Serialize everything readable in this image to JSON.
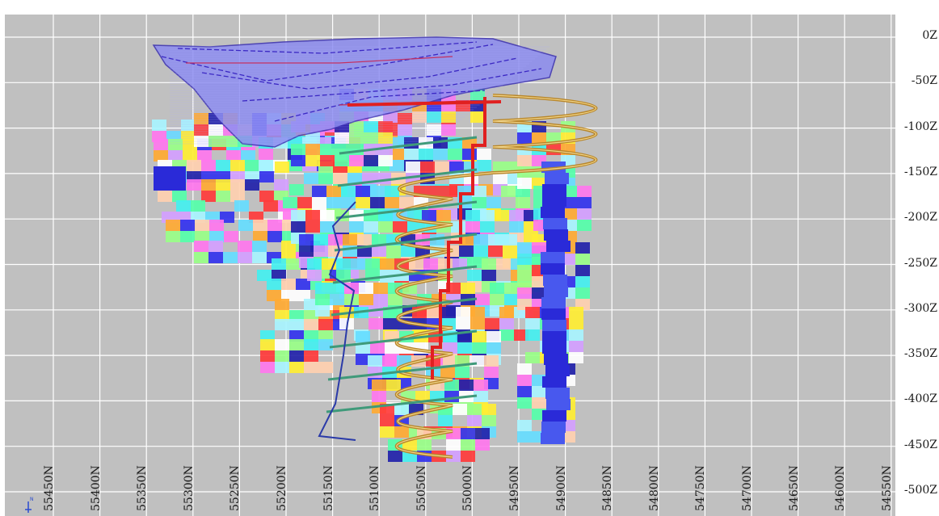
{
  "section_view": {
    "elevation_labels": [
      "0Z",
      "-50Z",
      "-100Z",
      "-150Z",
      "-200Z",
      "-250Z",
      "-300Z",
      "-350Z",
      "-400Z",
      "-450Z",
      "-500Z"
    ],
    "northing_labels": [
      "55450N",
      "55400N",
      "55350N",
      "55300N",
      "55250N",
      "55200N",
      "55150N",
      "55100N",
      "55050N",
      "55000N",
      "54950N",
      "54900N",
      "54850N",
      "54800N",
      "54750N",
      "54700N",
      "54650N",
      "54600N",
      "54550N"
    ],
    "colors": {
      "background": "#c0c0c0",
      "grid": "#ffffff",
      "open_pit": "#8c8cf0",
      "open_pit_edge": "#3a2fb0",
      "ramp": "#b8862a",
      "raise": "#e02020",
      "drift": "#3f9a7a",
      "access": "#2a3aa8"
    }
  }
}
